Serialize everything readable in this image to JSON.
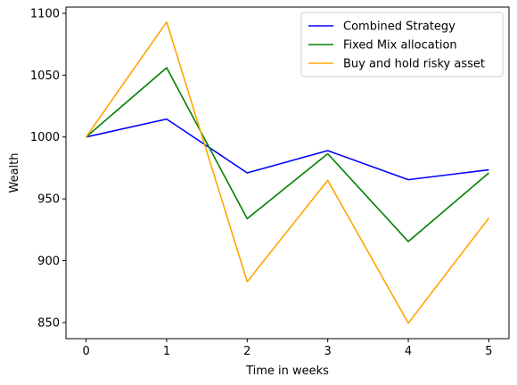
{
  "chart_data": {
    "type": "line",
    "title": "",
    "xlabel": "Time in weeks",
    "ylabel": "Wealth",
    "x": [
      0,
      1,
      2,
      3,
      4,
      5
    ],
    "xticks": [
      0,
      1,
      2,
      3,
      4,
      5
    ],
    "yticks": [
      850,
      900,
      950,
      1000,
      1050,
      1100
    ],
    "xlim": [
      -0.25,
      5.25
    ],
    "ylim": [
      837,
      1105
    ],
    "grid": false,
    "legend_position": "top-right",
    "series": [
      {
        "name": "Combined Strategy",
        "color": "#0000ff",
        "values": [
          1000,
          1014.5,
          971,
          989,
          965.5,
          973.5
        ]
      },
      {
        "name": "Fixed Mix allocation",
        "color": "#008000",
        "values": [
          1000,
          1056,
          934,
          986.5,
          915.5,
          971
        ]
      },
      {
        "name": "Buy and hold risky asset",
        "color": "#ffa500",
        "values": [
          1000,
          1093,
          883,
          965,
          849.5,
          934.5
        ]
      }
    ]
  }
}
